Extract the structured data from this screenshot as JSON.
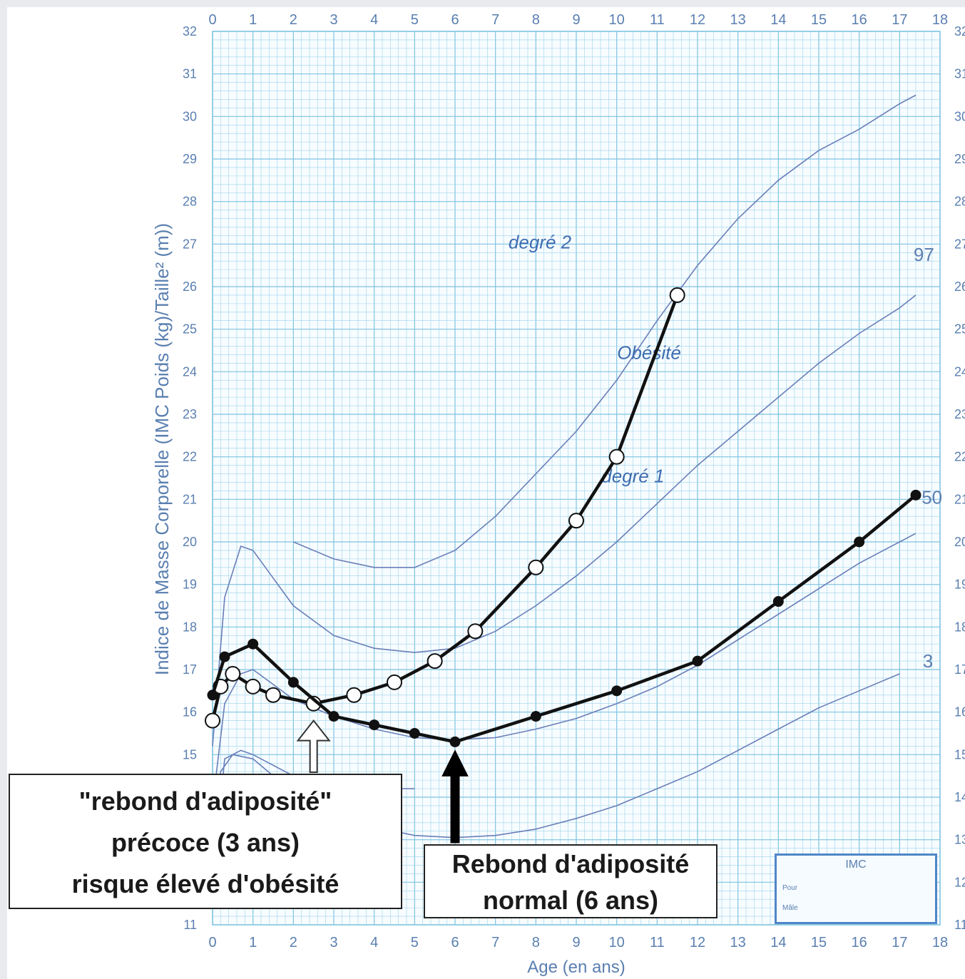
{
  "chart_data": {
    "type": "line",
    "title": "",
    "xlabel": "Age (en ans)",
    "ylabel": "Indice de Masse Corporelle (IMC Poids (kg)/Taille² (m))",
    "xlim": [
      0,
      18
    ],
    "ylim": [
      11,
      32
    ],
    "x_ticks": [
      "0",
      "1",
      "2",
      "3",
      "4",
      "5",
      "6",
      "7",
      "8",
      "9",
      "10",
      "11",
      "12",
      "13",
      "14",
      "15",
      "16",
      "17",
      "18"
    ],
    "y_ticks": [
      "11",
      "12",
      "13",
      "14",
      "15",
      "16",
      "17",
      "18",
      "19",
      "20",
      "21",
      "22",
      "23",
      "24",
      "25",
      "26",
      "27",
      "28",
      "29",
      "30",
      "31",
      "32"
    ],
    "grid": true,
    "reference_curves": [
      {
        "name": "3",
        "points": [
          [
            0,
            13.2
          ],
          [
            0.2,
            14.6
          ],
          [
            0.5,
            15.0
          ],
          [
            1,
            14.9
          ],
          [
            2,
            14.1
          ],
          [
            3,
            13.6
          ],
          [
            4,
            13.3
          ],
          [
            5,
            13.1
          ],
          [
            6,
            13.05
          ],
          [
            7,
            13.1
          ],
          [
            8,
            13.25
          ],
          [
            9,
            13.5
          ],
          [
            10,
            13.8
          ],
          [
            11,
            14.2
          ],
          [
            12,
            14.6
          ],
          [
            13,
            15.1
          ],
          [
            14,
            15.6
          ],
          [
            15,
            16.1
          ],
          [
            16,
            16.5
          ],
          [
            17,
            16.9
          ]
        ]
      },
      {
        "name": "50",
        "points": [
          [
            0,
            13.8
          ],
          [
            0.3,
            16.2
          ],
          [
            0.7,
            16.9
          ],
          [
            1,
            17.0
          ],
          [
            2,
            16.3
          ],
          [
            3,
            15.9
          ],
          [
            4,
            15.6
          ],
          [
            5,
            15.4
          ],
          [
            6,
            15.35
          ],
          [
            7,
            15.4
          ],
          [
            8,
            15.6
          ],
          [
            9,
            15.85
          ],
          [
            10,
            16.2
          ],
          [
            11,
            16.6
          ],
          [
            12,
            17.1
          ],
          [
            13,
            17.7
          ],
          [
            14,
            18.3
          ],
          [
            15,
            18.9
          ],
          [
            16,
            19.5
          ],
          [
            17,
            20.0
          ],
          [
            17.4,
            20.2
          ]
        ]
      },
      {
        "name": "97",
        "points": [
          [
            0,
            15.2
          ],
          [
            0.3,
            18.7
          ],
          [
            0.7,
            19.9
          ],
          [
            1,
            19.8
          ],
          [
            2,
            18.5
          ],
          [
            3,
            17.8
          ],
          [
            4,
            17.5
          ],
          [
            5,
            17.4
          ],
          [
            6,
            17.5
          ],
          [
            7,
            17.9
          ],
          [
            8,
            18.5
          ],
          [
            9,
            19.2
          ],
          [
            10,
            20.0
          ],
          [
            11,
            20.9
          ],
          [
            12,
            21.8
          ],
          [
            13,
            22.6
          ],
          [
            14,
            23.4
          ],
          [
            15,
            24.2
          ],
          [
            16,
            24.9
          ],
          [
            17,
            25.5
          ],
          [
            17.4,
            25.8
          ]
        ]
      },
      {
        "name": "Obésité",
        "points": [
          [
            2,
            20.0
          ],
          [
            3,
            19.6
          ],
          [
            4,
            19.4
          ],
          [
            5,
            19.4
          ],
          [
            6,
            19.8
          ],
          [
            7,
            20.6
          ],
          [
            8,
            21.6
          ],
          [
            9,
            22.6
          ],
          [
            10,
            23.8
          ],
          [
            11,
            25.2
          ],
          [
            12,
            26.5
          ],
          [
            13,
            27.6
          ],
          [
            14,
            28.5
          ],
          [
            15,
            29.2
          ],
          [
            16,
            29.7
          ],
          [
            17,
            30.3
          ],
          [
            17.4,
            30.5
          ]
        ]
      },
      {
        "name": "",
        "points": [
          [
            0,
            12.0
          ],
          [
            0.3,
            14.9
          ],
          [
            0.7,
            15.1
          ],
          [
            1,
            15.0
          ],
          [
            2,
            14.5
          ],
          [
            3,
            14.3
          ],
          [
            4,
            14.2
          ],
          [
            5,
            14.2
          ]
        ]
      }
    ],
    "curve_labels": [
      "97",
      "50",
      "3"
    ],
    "zone_labels": [
      "degré 2",
      "Obésité",
      "degré 1"
    ],
    "series": [
      {
        "name": "",
        "marker": "open-circle",
        "color": "#111111",
        "points": [
          [
            0,
            15.8
          ],
          [
            0.2,
            16.6
          ],
          [
            0.5,
            16.9
          ],
          [
            1,
            16.6
          ],
          [
            1.5,
            16.4
          ],
          [
            2.5,
            16.2
          ],
          [
            3.5,
            16.4
          ],
          [
            4.5,
            16.7
          ],
          [
            5.5,
            17.2
          ],
          [
            6.5,
            17.9
          ],
          [
            8,
            19.4
          ],
          [
            9,
            20.5
          ],
          [
            10,
            22.0
          ],
          [
            11.5,
            25.8
          ]
        ]
      },
      {
        "name": "",
        "marker": "filled-circle",
        "color": "#111111",
        "points": [
          [
            0,
            16.4
          ],
          [
            0.3,
            17.3
          ],
          [
            1,
            17.6
          ],
          [
            2,
            16.7
          ],
          [
            3,
            15.9
          ],
          [
            4,
            15.7
          ],
          [
            5,
            15.5
          ],
          [
            6,
            15.3
          ],
          [
            8,
            15.9
          ],
          [
            10,
            16.5
          ],
          [
            12,
            17.2
          ],
          [
            14,
            18.6
          ],
          [
            16,
            20.0
          ],
          [
            17.4,
            21.1
          ]
        ]
      }
    ],
    "annotations": [
      {
        "id": "early",
        "x": 2.5,
        "lines": [
          "\"rebond d'adiposité\"",
          "précoce (3 ans)",
          "risque élevé d'obésité"
        ],
        "arrow": "open"
      },
      {
        "id": "normal",
        "x": 6,
        "lines": [
          "Rebond d'adiposité",
          "normal (6 ans)"
        ],
        "arrow": "filled"
      }
    ],
    "legend_box": {
      "title": "IMC",
      "lines": [
        "Pour",
        "Mâle"
      ]
    }
  },
  "colors": {
    "grid": "#9ed3ea",
    "grid_major": "#7fc3e0",
    "curve": "#6a7fb8",
    "text": "#5a7fb0",
    "series": "#111111"
  }
}
